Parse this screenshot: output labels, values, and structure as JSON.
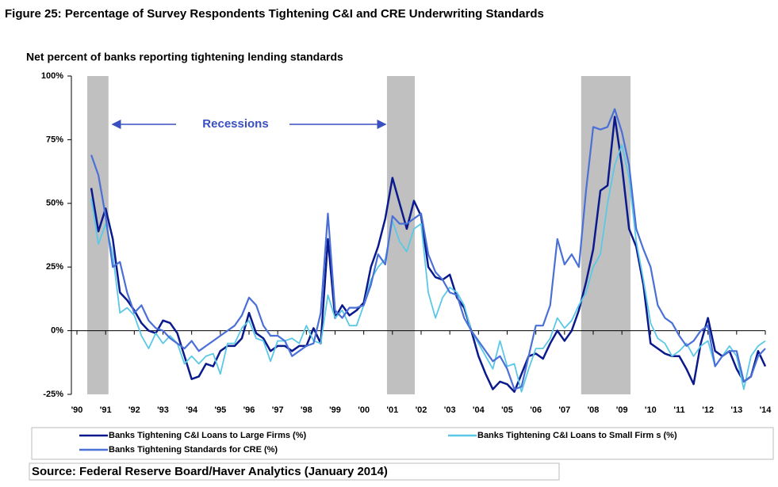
{
  "chart_data": {
    "type": "line",
    "title": "Figure 25: Percentage of Survey Respondents Tightening C&I and CRE Underwriting Standards",
    "y_label": "Net percent of banks reporting tightening lending standards",
    "annotation": "Recessions",
    "source": "Source: Federal Reserve Board/Haver Analytics (January 2014)",
    "recessions": [
      [
        1990.36,
        1991.1
      ],
      [
        2000.81,
        2001.78
      ],
      [
        2007.58,
        2009.3
      ]
    ],
    "recession_color": "#c0c0c0",
    "x": [
      1990.5,
      1990.75,
      1991,
      1991.25,
      1991.5,
      1991.75,
      1992,
      1992.25,
      1992.5,
      1992.75,
      1993,
      1993.25,
      1993.5,
      1993.75,
      1994,
      1994.25,
      1994.5,
      1994.75,
      1995,
      1995.25,
      1995.5,
      1995.75,
      1996,
      1996.25,
      1996.5,
      1996.75,
      1997,
      1997.25,
      1997.5,
      1997.75,
      1998,
      1998.25,
      1998.5,
      1998.75,
      1999,
      1999.25,
      1999.5,
      1999.75,
      2000,
      2000.25,
      2000.5,
      2000.75,
      2001,
      2001.25,
      2001.5,
      2001.75,
      2002,
      2002.25,
      2002.5,
      2002.75,
      2003,
      2003.25,
      2003.5,
      2003.75,
      2004,
      2004.25,
      2004.5,
      2004.75,
      2005,
      2005.25,
      2005.5,
      2005.75,
      2006,
      2006.25,
      2006.5,
      2006.75,
      2007,
      2007.25,
      2007.5,
      2007.75,
      2008,
      2008.25,
      2008.5,
      2008.75,
      2009,
      2009.25,
      2009.5,
      2009.75,
      2010,
      2010.25,
      2010.5,
      2010.75,
      2011,
      2011.25,
      2011.5,
      2011.75,
      2012,
      2012.25,
      2012.5,
      2012.75,
      2013,
      2013.25,
      2013.5,
      2013.75,
      2014
    ],
    "series": [
      {
        "name": "Banks Tightening C&I Loans to Large Firms (%)",
        "color": "#0a1a8c",
        "width": 2.5,
        "values": [
          56,
          39,
          48,
          36,
          15,
          12,
          8,
          3,
          0,
          -1,
          4,
          3,
          -1,
          -10,
          -19,
          -18,
          -13,
          -14,
          -8,
          -6,
          -6,
          -3,
          7,
          -1,
          -3,
          -8,
          -6,
          -6,
          -8,
          -6,
          -6,
          1,
          -5,
          36,
          5,
          10,
          6,
          8,
          11,
          25,
          33,
          44,
          60,
          50,
          40,
          51,
          45,
          25,
          21,
          20,
          22,
          13,
          9,
          0,
          -10,
          -17,
          -23,
          -20,
          -21,
          -24,
          -17,
          -10,
          -9,
          -11,
          -5,
          0,
          -4,
          0,
          8,
          19,
          32,
          55,
          57,
          84,
          65,
          40,
          33,
          18,
          -5,
          -7,
          -9,
          -10,
          -10,
          -15,
          -21,
          -5,
          5,
          -8,
          -10,
          -8,
          -15,
          -20,
          -18,
          -8,
          -14
        ]
      },
      {
        "name": "Banks Tightening C&I Loans to Small Firm s (%)",
        "color": "#5bc8e6",
        "width": 1.8,
        "values": [
          52,
          34,
          42,
          30,
          7,
          9,
          6,
          -2,
          -7,
          -1,
          -5,
          -2,
          -5,
          -13,
          -10,
          -13,
          -10,
          -9,
          -17,
          -5,
          -5,
          1,
          4,
          -3,
          -4,
          -12,
          -4,
          -4,
          -3,
          -5,
          2,
          -4,
          -5,
          14,
          5,
          8,
          2,
          2,
          10,
          20,
          25,
          28,
          43,
          35,
          31,
          40,
          42,
          15,
          5,
          13,
          17,
          15,
          10,
          0,
          -5,
          -10,
          -15,
          -4,
          -14,
          -13,
          -24,
          -15,
          -7,
          -7,
          -3,
          5,
          1,
          4,
          10,
          15,
          25,
          30,
          50,
          65,
          73,
          60,
          35,
          20,
          3,
          -3,
          -5,
          -10,
          -8,
          -5,
          -10,
          -6,
          -4,
          -14,
          -10,
          -6,
          -10,
          -23,
          -10,
          -6,
          -4
        ]
      },
      {
        "name": "Banks Tightening Standards for CRE (%)",
        "color": "#4a6fd6",
        "width": 2.2,
        "values": [
          69,
          61,
          45,
          25,
          27,
          15,
          7,
          10,
          4,
          1,
          0,
          -3,
          -5,
          -7,
          -4,
          -8,
          -6,
          -4,
          -2,
          0,
          2,
          6,
          13,
          10,
          2,
          -2,
          -2,
          -4,
          -10,
          -8,
          -6,
          -5,
          7,
          46,
          8,
          5,
          9,
          9,
          10,
          18,
          30,
          26,
          45,
          42,
          42,
          44,
          46,
          30,
          23,
          20,
          15,
          14,
          5,
          0,
          -4,
          -8,
          -12,
          -10,
          -15,
          -23,
          -22,
          -10,
          2,
          2,
          10,
          36,
          26,
          30,
          25,
          55,
          80,
          79,
          80,
          87,
          78,
          65,
          40,
          32,
          25,
          10,
          5,
          3,
          -2,
          -6,
          -4,
          0,
          2,
          -14,
          -10,
          -8,
          -8,
          -20,
          -18,
          -10,
          -7
        ]
      }
    ],
    "xlim": [
      1990,
      2014
    ],
    "xticks": [
      {
        "value": 1990,
        "label": "'90"
      },
      {
        "value": 1991,
        "label": "'91"
      },
      {
        "value": 1992,
        "label": "'92"
      },
      {
        "value": 1993,
        "label": "'93"
      },
      {
        "value": 1994,
        "label": "'94"
      },
      {
        "value": 1995,
        "label": "'95"
      },
      {
        "value": 1996,
        "label": "'96"
      },
      {
        "value": 1997,
        "label": "'97"
      },
      {
        "value": 1998,
        "label": "'98"
      },
      {
        "value": 1999,
        "label": "'99"
      },
      {
        "value": 2000,
        "label": "'00"
      },
      {
        "value": 2001,
        "label": "'01"
      },
      {
        "value": 2002,
        "label": "'02"
      },
      {
        "value": 2003,
        "label": "'03"
      },
      {
        "value": 2004,
        "label": "'04"
      },
      {
        "value": 2005,
        "label": "'05"
      },
      {
        "value": 2006,
        "label": "'06"
      },
      {
        "value": 2007,
        "label": "'07"
      },
      {
        "value": 2008,
        "label": "'08"
      },
      {
        "value": 2009,
        "label": "'09"
      },
      {
        "value": 2010,
        "label": "'10"
      },
      {
        "value": 2011,
        "label": "'11"
      },
      {
        "value": 2012,
        "label": "'12"
      },
      {
        "value": 2013,
        "label": "'13"
      },
      {
        "value": 2014,
        "label": "'14"
      }
    ],
    "ylim": [
      -25,
      100
    ],
    "yticks": [
      {
        "value": -25,
        "label": "-25%"
      },
      {
        "value": 0,
        "label": "0%"
      },
      {
        "value": 25,
        "label": "25%"
      },
      {
        "value": 50,
        "label": "50%"
      },
      {
        "value": 75,
        "label": "75%"
      },
      {
        "value": 100,
        "label": "100%"
      }
    ],
    "grid": false
  }
}
